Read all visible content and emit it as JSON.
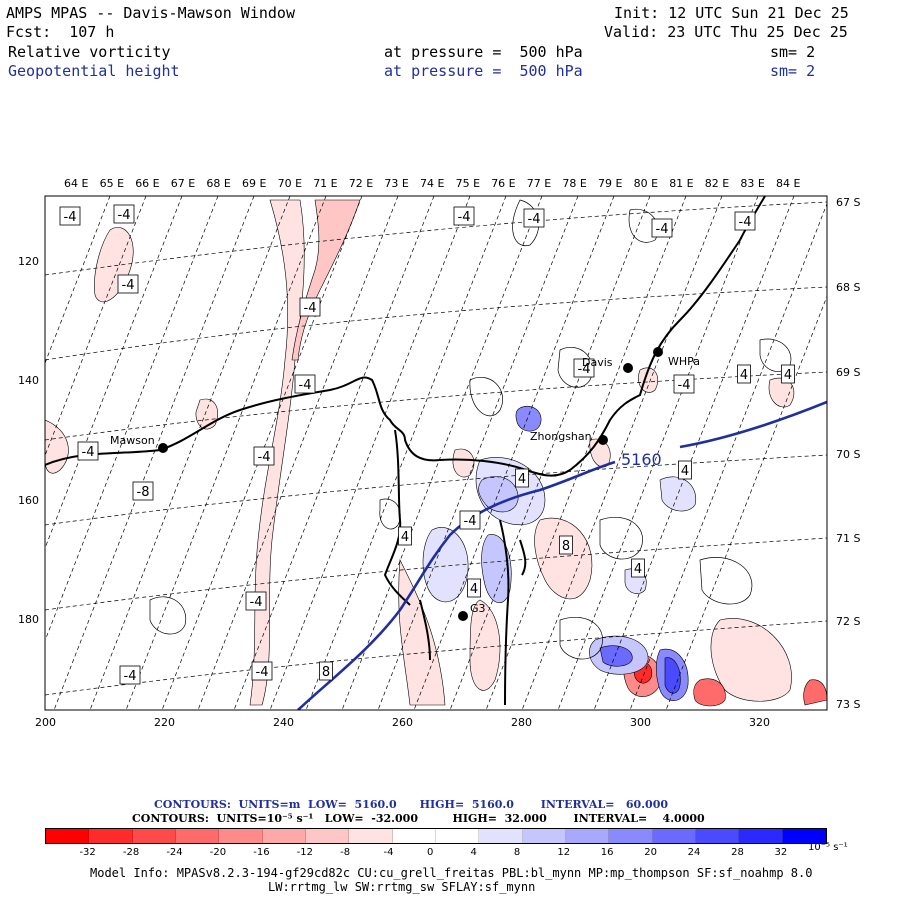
{
  "header": {
    "title": "AMPS MPAS -- Davis-Mawson Window",
    "forecast": "Fcst:  107 h",
    "init": "Init: 12 UTC Sun 21 Dec 25",
    "valid": "Valid: 23 UTC Thu 25 Dec 25",
    "field1": {
      "name": "Relative vorticity",
      "pressure": "at pressure =  500 hPa",
      "smooth": "sm= 2"
    },
    "field2": {
      "name": "Geopotential height",
      "pressure": "at pressure =  500 hPa",
      "smooth": "sm= 2"
    }
  },
  "map": {
    "top_longitudes": [
      "64 E",
      "65 E",
      "66 E",
      "67 E",
      "68 E",
      "69 E",
      "70 E",
      "71 E",
      "72 E",
      "73 E",
      "74 E",
      "75 E",
      "76 E",
      "77 E",
      "78 E",
      "79 E",
      "80 E",
      "81 E",
      "82 E",
      "83 E",
      "84 E"
    ],
    "right_latitudes": [
      "67 S",
      "68 S",
      "69 S",
      "70 S",
      "71 S",
      "72 S",
      "73 S"
    ],
    "x_ticks": [
      "200",
      "220",
      "240",
      "260",
      "280",
      "300",
      "320"
    ],
    "y_ticks": [
      "120",
      "140",
      "160",
      "180"
    ],
    "stations": [
      {
        "name": "Mawson"
      },
      {
        "name": "Davis"
      },
      {
        "name": "WHPa"
      },
      {
        "name": "Zhongshan"
      },
      {
        "name": "G3"
      }
    ],
    "height_contour_label": "5160",
    "contour_labels": [
      "-4",
      "-4",
      "-4",
      "-4",
      "-4",
      "-4",
      "-4",
      "-8",
      "-4",
      "-4",
      "-4",
      "-4",
      "-4",
      "-4",
      "-4",
      "-4",
      "-4",
      "4",
      "4",
      "4",
      "4",
      "4",
      "4",
      "8",
      "8",
      "4",
      "-4"
    ]
  },
  "contour_info": {
    "line1": "CONTOURS:  UNITS=m  LOW=  5160.0      HIGH=  5160.0       INTERVAL=   60.000",
    "line2": "CONTOURS:  UNITS=10⁻⁵ s⁻¹   LOW=  -32.000         HIGH=  32.000       INTERVAL=    4.0000"
  },
  "colorbar": {
    "labels": [
      "-32",
      "-28",
      "-24",
      "-20",
      "-16",
      "-12",
      "-8",
      "-4",
      "0",
      "4",
      "8",
      "12",
      "16",
      "20",
      "24",
      "28",
      "32"
    ],
    "units": "10⁻⁵ s⁻¹",
    "colors": [
      "#ff0000",
      "#ff2a2a",
      "#ff4a4a",
      "#ff6a6a",
      "#ff8a8a",
      "#ffa8a8",
      "#ffc6c6",
      "#ffe2e2",
      "#ffffff",
      "#ffffff",
      "#e2e2ff",
      "#c6c6ff",
      "#a8a8ff",
      "#8a8aff",
      "#6a6aff",
      "#4a4aff",
      "#2a2aff",
      "#0000ff"
    ]
  },
  "footer": {
    "model_line1": "Model Info: MPASv8.2.3-194-gf29cd82c CU:cu_grell_freitas PBL:bl_mynn MP:mp_thompson SF:sf_noahmp 8.0",
    "model_line2": "LW:rrtmg_lw SW:rrtmg_sw SFLAY:sf_mynn"
  }
}
